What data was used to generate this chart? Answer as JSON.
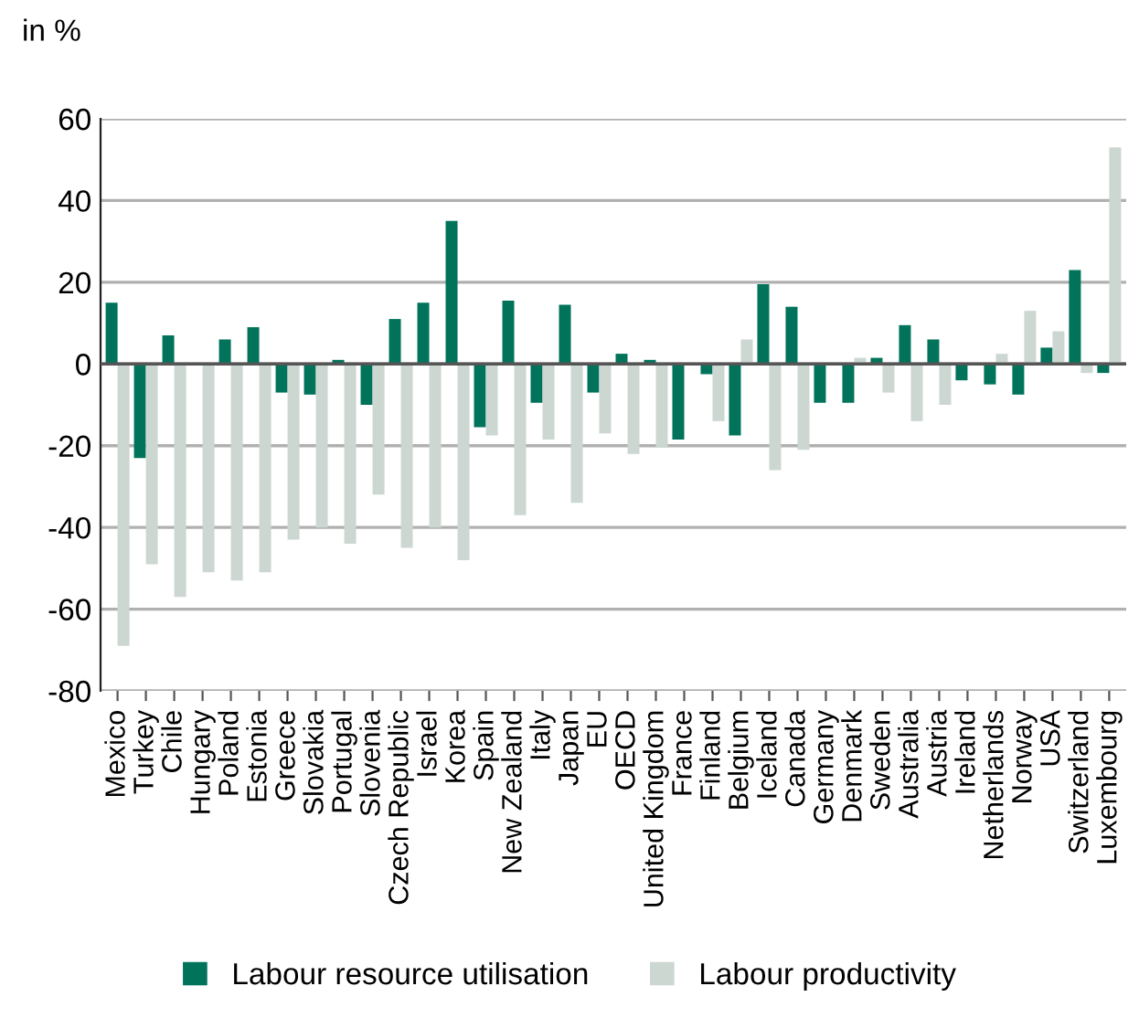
{
  "chart_data": {
    "type": "bar",
    "ylabel": "in %",
    "categories": [
      "Mexico",
      "Turkey",
      "Chile",
      "Hungary",
      "Poland",
      "Estonia",
      "Greece",
      "Slovakia",
      "Portugal",
      "Slovenia",
      "Czech Republic",
      "Israel",
      "Korea",
      "Spain",
      "New Zealand",
      "Italy",
      "Japan",
      "EU",
      "OECD",
      "United Kingdom",
      "France",
      "Finland",
      "Belgium",
      "Iceland",
      "Canada",
      "Germany",
      "Denmark",
      "Sweden",
      "Australia",
      "Austria",
      "Ireland",
      "Netherlands",
      "Norway",
      "USA",
      "Switzerland",
      "Luxembourg"
    ],
    "series": [
      {
        "name": "Labour resource utilisation",
        "color": "#00735a",
        "values": [
          15,
          -23,
          7,
          null,
          6,
          9,
          -7,
          -7.5,
          1,
          -10,
          11,
          15,
          35,
          -15.5,
          15.5,
          -9.5,
          14.5,
          -7,
          2.5,
          1,
          -18.5,
          -2.5,
          -17.5,
          19.5,
          14,
          -9.5,
          -9.5,
          1.5,
          9.5,
          6,
          -4,
          -5,
          -7.5,
          4,
          23,
          -2.2
        ]
      },
      {
        "name": "Labour productivity",
        "color": "#ccd7d2",
        "values": [
          -69,
          -49,
          -57,
          -51,
          -53,
          -51,
          -43,
          -40,
          -44,
          -32,
          -45,
          -40,
          -48,
          -17.5,
          -37,
          -18.5,
          -34,
          -17,
          -22,
          -20.5,
          null,
          -14,
          6,
          -26,
          -21,
          null,
          1.5,
          -7,
          -14,
          -10,
          null,
          2.5,
          13,
          8,
          -2.2,
          53
        ]
      }
    ],
    "ylim": [
      -80,
      60
    ],
    "yticks": [
      -80,
      -60,
      -40,
      -20,
      0,
      20,
      40,
      60
    ],
    "grid": "y",
    "legend": "bottom"
  }
}
